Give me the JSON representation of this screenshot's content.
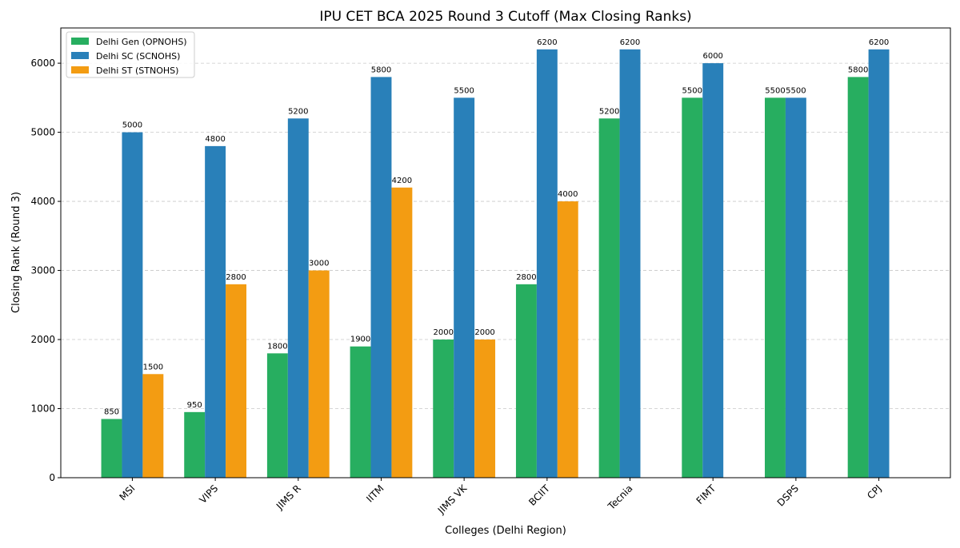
{
  "chart_data": {
    "type": "bar",
    "title": "IPU CET BCA 2025 Round 3 Cutoff (Max Closing Ranks)",
    "xlabel": "Colleges (Delhi Region)",
    "ylabel": "Closing Rank (Round 3)",
    "ylim": [
      0,
      6510
    ],
    "yticks": [
      0,
      1000,
      2000,
      3000,
      4000,
      5000,
      6000
    ],
    "grid": "y-dashed",
    "legend_position": "top-left",
    "categories": [
      "MSI",
      "VIPS",
      "JIMS R",
      "IITM",
      "JIMS VK",
      "BCIIT",
      "Tecnia",
      "FIMT",
      "DSPS",
      "CPJ"
    ],
    "series": [
      {
        "name": "Delhi Gen (OPNOHS)",
        "color": "#27ae60",
        "values": [
          850,
          950,
          1800,
          1900,
          2000,
          2800,
          5200,
          5500,
          5500,
          5800
        ]
      },
      {
        "name": "Delhi SC (SCNOHS)",
        "color": "#2980b9",
        "values": [
          5000,
          4800,
          5200,
          5800,
          5500,
          6200,
          6200,
          6000,
          5500,
          6200
        ]
      },
      {
        "name": "Delhi ST (STNOHS)",
        "color": "#f39c12",
        "values": [
          1500,
          2800,
          3000,
          4200,
          2000,
          4000,
          null,
          null,
          null,
          null
        ]
      }
    ]
  }
}
